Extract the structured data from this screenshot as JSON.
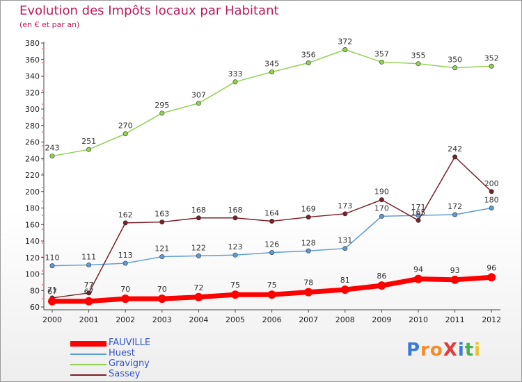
{
  "title": "Evolution des Impôts locaux par Habitant",
  "subtitle": "(en € et par an)",
  "logo_text": "ProXiti",
  "chart_data": {
    "type": "line",
    "x": [
      "2000",
      "2001",
      "2002",
      "2003",
      "2004",
      "2005",
      "2006",
      "2007",
      "2008",
      "2009",
      "2010",
      "2011",
      "2012"
    ],
    "ylim": [
      60,
      380
    ],
    "ytick_step": 20,
    "grid": false,
    "legend_position": "bottom-left",
    "series": [
      {
        "name": "FAUVILLE",
        "color": "#ff0000",
        "values": [
          67,
          67,
          70,
          70,
          72,
          75,
          75,
          78,
          81,
          86,
          94,
          93,
          96
        ]
      },
      {
        "name": "Huest",
        "color": "#5b9bd5",
        "values": [
          110,
          111,
          113,
          121,
          122,
          123,
          126,
          128,
          131,
          170,
          171,
          172,
          180
        ]
      },
      {
        "name": "Gravigny",
        "color": "#92d050",
        "values": [
          243,
          251,
          270,
          295,
          307,
          333,
          345,
          356,
          372,
          357,
          355,
          350,
          352
        ]
      },
      {
        "name": "Sassey",
        "color": "#7b1f28",
        "values": [
          71,
          77,
          162,
          163,
          168,
          168,
          164,
          169,
          173,
          190,
          165,
          242,
          200
        ]
      }
    ]
  }
}
